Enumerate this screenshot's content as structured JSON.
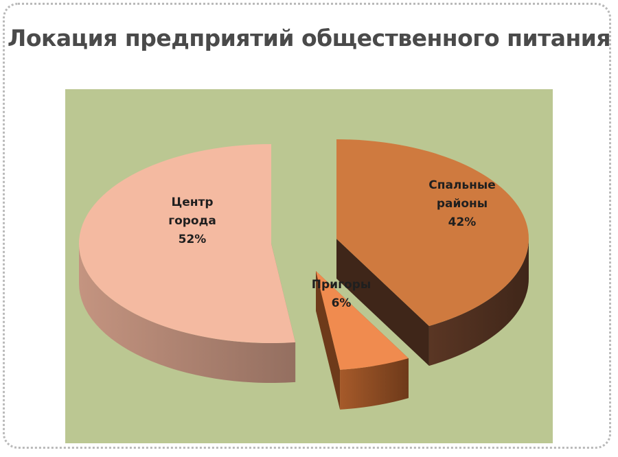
{
  "title": "Локация предприятий общественного питания",
  "chart_data": {
    "type": "pie",
    "title": "Локация предприятий общественного питания",
    "style": "3d-exploded",
    "background_color": "#bbc792",
    "slices": [
      {
        "key": "center",
        "label_lines": [
          "Центр",
          "города",
          "52%"
        ],
        "value": 52,
        "top_color": "#f4baa1",
        "side_color": "#c49480",
        "side_dark": "#946f60"
      },
      {
        "key": "sleeping",
        "label_lines": [
          "Спальные",
          "районы",
          "42%"
        ],
        "value": 42,
        "top_color": "#cf7a3f",
        "side_color": "#5a3624",
        "side_dark": "#3f2619"
      },
      {
        "key": "suburbs",
        "label_lines": [
          "Пригоры",
          "6%"
        ],
        "value": 6,
        "top_color": "#f08b4f",
        "side_color": "#a65a2a",
        "side_dark": "#6e3a1a"
      }
    ]
  }
}
